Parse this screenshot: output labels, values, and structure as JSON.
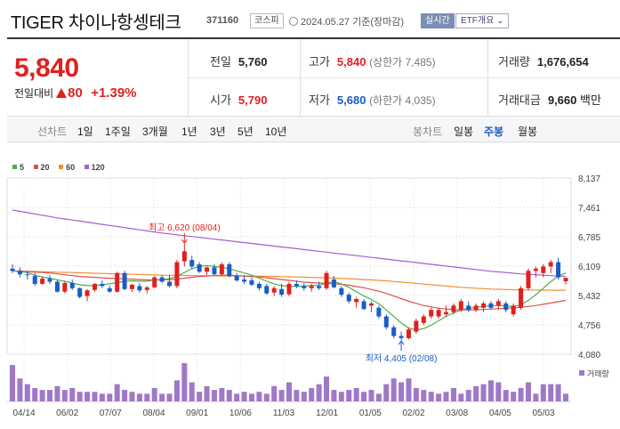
{
  "header": {
    "title": "TIGER 차이나항셍테크",
    "code": "371160",
    "market": "코스피",
    "date": "2024.05.27 기준(장마감)",
    "realtime_label": "실시간",
    "etf_label": "ETF개요 ⌄"
  },
  "quote": {
    "price": "5,840",
    "change_label": "전일대비",
    "change_value": "80",
    "change_pct": "+1.39%",
    "prev_label": "전일",
    "prev_value": "5,760",
    "high_label": "고가",
    "high_value": "5,840",
    "high_sub": "(상한가 7,485)",
    "volume_label": "거래량",
    "volume_value": "1,676,654",
    "open_label": "시가",
    "open_value": "5,790",
    "low_label": "저가",
    "low_value": "5,680",
    "low_sub": "(하한가 4,035)",
    "amount_label": "거래대금",
    "amount_value": "9,660",
    "amount_unit": "백만"
  },
  "periods": {
    "label": "선차트",
    "items": [
      "1일",
      "1주일",
      "3개월",
      "1년",
      "3년",
      "5년",
      "10년"
    ],
    "candle_label": "봉차트",
    "candle_items": [
      "일봉",
      "주봉",
      "월봉"
    ],
    "candle_active": "주봉"
  },
  "colors": {
    "up": "#e02020",
    "down": "#1a5cc8",
    "ma5": "#4caf50",
    "ma20": "#e05050",
    "ma60": "#f09030",
    "ma120": "#a060d0",
    "volume": "#a078c8"
  },
  "chart_data": {
    "type": "candlestick",
    "legend": [
      {
        "name": "5",
        "color": "#4caf50"
      },
      {
        "name": "20",
        "color": "#e05050"
      },
      {
        "name": "60",
        "color": "#f09030"
      },
      {
        "name": "120",
        "color": "#a060d0"
      }
    ],
    "y_ticks": [
      "8,137",
      "7,461",
      "6,785",
      "6,109",
      "5,432",
      "4,756",
      "4,080"
    ],
    "ylim": [
      4080,
      8137
    ],
    "x_ticks": [
      "04/14",
      "06/02",
      "07/07",
      "08/04",
      "09/01",
      "10/06",
      "11/03",
      "12/01",
      "01/05",
      "02/02",
      "03/08",
      "04/05",
      "05/03"
    ],
    "volume_label": "거래량",
    "high_annotation": "최고 6,620 (08/04)",
    "low_annotation": "최저 4,405 (02/08)",
    "candles": [
      [
        6050,
        6150,
        5950,
        6000
      ],
      [
        6000,
        6080,
        5850,
        5920
      ],
      [
        5920,
        6000,
        5800,
        5900
      ],
      [
        5880,
        5950,
        5650,
        5700
      ],
      [
        5700,
        5860,
        5680,
        5820
      ],
      [
        5820,
        5900,
        5700,
        5750
      ],
      [
        5750,
        5790,
        5500,
        5520
      ],
      [
        5520,
        5750,
        5480,
        5720
      ],
      [
        5720,
        5800,
        5560,
        5600
      ],
      [
        5600,
        5620,
        5360,
        5400
      ],
      [
        5420,
        5580,
        5300,
        5550
      ],
      [
        5560,
        5720,
        5520,
        5700
      ],
      [
        5700,
        5780,
        5600,
        5650
      ],
      [
        5600,
        5660,
        5500,
        5520
      ],
      [
        5520,
        5980,
        5500,
        5950
      ],
      [
        5950,
        6000,
        5550,
        5580
      ],
      [
        5580,
        5700,
        5520,
        5680
      ],
      [
        5650,
        5720,
        5500,
        5550
      ],
      [
        5560,
        5650,
        5480,
        5620
      ],
      [
        5620,
        5880,
        5600,
        5850
      ],
      [
        5850,
        5900,
        5720,
        5750
      ],
      [
        5750,
        5900,
        5620,
        5650
      ],
      [
        5650,
        6250,
        5600,
        6200
      ],
      [
        6220,
        6620,
        6100,
        6450
      ],
      [
        6250,
        6350,
        6050,
        6100
      ],
      [
        6150,
        6200,
        5950,
        5980
      ],
      [
        5980,
        6100,
        5900,
        6080
      ],
      [
        6080,
        6150,
        5900,
        5920
      ],
      [
        5920,
        6200,
        5880,
        6150
      ],
      [
        6150,
        6200,
        5850,
        5880
      ],
      [
        5880,
        5950,
        5750,
        5780
      ],
      [
        5800,
        5900,
        5700,
        5750
      ],
      [
        5780,
        5850,
        5650,
        5680
      ],
      [
        5700,
        5750,
        5550,
        5600
      ],
      [
        5650,
        5700,
        5450,
        5480
      ],
      [
        5500,
        5650,
        5420,
        5600
      ],
      [
        5580,
        5700,
        5400,
        5450
      ],
      [
        5460,
        5750,
        5420,
        5700
      ],
      [
        5700,
        5780,
        5600,
        5650
      ],
      [
        5650,
        5720,
        5540,
        5600
      ],
      [
        5600,
        5700,
        5520,
        5650
      ],
      [
        5650,
        5750,
        5560,
        5600
      ],
      [
        5600,
        6000,
        5560,
        5950
      ],
      [
        5800,
        5880,
        5600,
        5620
      ],
      [
        5600,
        5650,
        5400,
        5450
      ],
      [
        5450,
        5500,
        5250,
        5300
      ],
      [
        5280,
        5400,
        5150,
        5350
      ],
      [
        5300,
        5350,
        5100,
        5120
      ],
      [
        5200,
        5300,
        5050,
        5250
      ],
      [
        5150,
        5200,
        4900,
        4950
      ],
      [
        4950,
        5000,
        4650,
        4700
      ],
      [
        4700,
        4750,
        4450,
        4500
      ],
      [
        4500,
        4600,
        4405,
        4450
      ],
      [
        4450,
        4700,
        4420,
        4650
      ],
      [
        4600,
        4900,
        4550,
        4850
      ],
      [
        4800,
        5000,
        4750,
        4950
      ],
      [
        4950,
        5150,
        4900,
        5100
      ],
      [
        4950,
        5150,
        4900,
        5100
      ],
      [
        5000,
        5200,
        4950,
        5050
      ],
      [
        5050,
        5250,
        5000,
        5200
      ],
      [
        5100,
        5350,
        5050,
        5300
      ],
      [
        5200,
        5300,
        5050,
        5100
      ],
      [
        5100,
        5250,
        5050,
        5200
      ],
      [
        5150,
        5300,
        5050,
        5250
      ],
      [
        5250,
        5300,
        5100,
        5150
      ],
      [
        5200,
        5350,
        5100,
        5300
      ],
      [
        5250,
        5300,
        5050,
        5100
      ],
      [
        5000,
        5250,
        4950,
        5200
      ],
      [
        5150,
        5650,
        5100,
        5600
      ],
      [
        5600,
        6050,
        5550,
        6000
      ],
      [
        6000,
        6100,
        5850,
        6050
      ],
      [
        5950,
        6150,
        5850,
        6100
      ],
      [
        6100,
        6250,
        5950,
        6200
      ],
      [
        6200,
        6300,
        5800,
        5850
      ],
      [
        5760,
        5840,
        5680,
        5840
      ]
    ],
    "ma": {
      "5": [
        6000,
        5980,
        5960,
        5900,
        5860,
        5830,
        5790,
        5760,
        5720,
        5680,
        5660,
        5660,
        5680,
        5700,
        5730,
        5760,
        5770,
        5760,
        5760,
        5790,
        5800,
        5820,
        5880,
        5960,
        6050,
        6100,
        6120,
        6100,
        6080,
        6050,
        6000,
        5950,
        5900,
        5830,
        5760,
        5700,
        5660,
        5640,
        5640,
        5650,
        5660,
        5670,
        5720,
        5750,
        5700,
        5620,
        5520,
        5420,
        5340,
        5240,
        5100,
        4950,
        4800,
        4680,
        4640,
        4670,
        4750,
        4850,
        4950,
        5030,
        5100,
        5140,
        5160,
        5180,
        5190,
        5200,
        5190,
        5180,
        5220,
        5320,
        5450,
        5600,
        5750,
        5880,
        5950
      ],
      "20": [
        6000,
        5990,
        5980,
        5970,
        5960,
        5950,
        5930,
        5910,
        5890,
        5870,
        5860,
        5850,
        5840,
        5830,
        5820,
        5820,
        5810,
        5800,
        5790,
        5790,
        5790,
        5800,
        5810,
        5830,
        5850,
        5870,
        5880,
        5890,
        5900,
        5900,
        5890,
        5880,
        5870,
        5860,
        5840,
        5820,
        5800,
        5780,
        5760,
        5740,
        5730,
        5720,
        5710,
        5700,
        5690,
        5670,
        5640,
        5610,
        5570,
        5530,
        5480,
        5420,
        5360,
        5300,
        5250,
        5200,
        5170,
        5140,
        5120,
        5110,
        5100,
        5100,
        5100,
        5110,
        5120,
        5130,
        5140,
        5150,
        5160,
        5180,
        5200,
        5230,
        5260,
        5290,
        5320
      ],
      "60": [
        6000,
        5995,
        5990,
        5985,
        5980,
        5975,
        5970,
        5965,
        5960,
        5955,
        5950,
        5945,
        5940,
        5935,
        5930,
        5925,
        5920,
        5915,
        5910,
        5905,
        5900,
        5898,
        5896,
        5894,
        5892,
        5890,
        5888,
        5886,
        5884,
        5882,
        5880,
        5878,
        5876,
        5874,
        5872,
        5870,
        5866,
        5862,
        5858,
        5854,
        5850,
        5844,
        5838,
        5832,
        5826,
        5820,
        5810,
        5800,
        5790,
        5780,
        5770,
        5755,
        5740,
        5725,
        5710,
        5695,
        5680,
        5665,
        5650,
        5635,
        5620,
        5610,
        5600,
        5590,
        5580,
        5575,
        5570,
        5565,
        5560,
        5560,
        5558,
        5556,
        5555,
        5554,
        5553
      ],
      "120": [
        7400,
        7370,
        7340,
        7310,
        7280,
        7250,
        7220,
        7195,
        7170,
        7145,
        7120,
        7095,
        7070,
        7045,
        7020,
        6995,
        6970,
        6945,
        6920,
        6895,
        6870,
        6850,
        6830,
        6810,
        6790,
        6770,
        6750,
        6730,
        6710,
        6690,
        6670,
        6650,
        6630,
        6610,
        6590,
        6570,
        6550,
        6530,
        6510,
        6490,
        6470,
        6450,
        6430,
        6410,
        6390,
        6370,
        6350,
        6330,
        6310,
        6290,
        6270,
        6250,
        6230,
        6210,
        6190,
        6170,
        6150,
        6130,
        6110,
        6090,
        6070,
        6050,
        6030,
        6010,
        5990,
        5975,
        5960,
        5945,
        5930,
        5920,
        5910,
        5900,
        5890,
        5880,
        5870
      ]
    },
    "volume": [
      0.95,
      0.6,
      0.45,
      0.35,
      0.3,
      0.3,
      0.4,
      0.3,
      0.35,
      0.25,
      0.25,
      0.25,
      0.2,
      0.2,
      0.45,
      0.3,
      0.25,
      0.2,
      0.2,
      0.35,
      0.2,
      0.2,
      0.55,
      1.0,
      0.5,
      0.25,
      0.4,
      0.3,
      0.35,
      0.3,
      0.2,
      0.25,
      0.2,
      0.25,
      0.2,
      0.4,
      0.3,
      0.5,
      0.3,
      0.25,
      0.35,
      0.45,
      0.65,
      0.3,
      0.25,
      0.3,
      0.35,
      0.25,
      0.3,
      0.2,
      0.45,
      0.6,
      0.5,
      0.6,
      0.35,
      0.3,
      0.25,
      0.2,
      0.25,
      0.35,
      0.2,
      0.3,
      0.4,
      0.45,
      0.55,
      0.5,
      0.3,
      0.25,
      0.35,
      0.5,
      0.2,
      0.45,
      0.45,
      0.45,
      0.2
    ]
  }
}
